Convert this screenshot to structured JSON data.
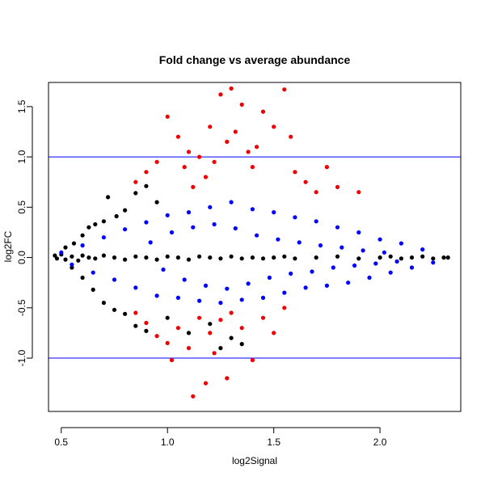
{
  "chart_data": {
    "type": "scatter",
    "title": "Fold change vs average abundance",
    "xlabel": "log2Signal",
    "ylabel": "log2FC",
    "xlim": [
      0.44,
      2.38
    ],
    "ylim": [
      -1.53,
      1.74
    ],
    "x_ticks": [
      {
        "value": 0.5,
        "label": "0.5"
      },
      {
        "value": 1.0,
        "label": "1.0"
      },
      {
        "value": 1.5,
        "label": "1.5"
      },
      {
        "value": 2.0,
        "label": "2.0"
      }
    ],
    "y_ticks": [
      {
        "value": -1.0,
        "label": "-1.0"
      },
      {
        "value": -0.5,
        "label": "-0.5"
      },
      {
        "value": 0.0,
        "label": "0.0"
      },
      {
        "value": 0.5,
        "label": "0.5"
      },
      {
        "value": 1.0,
        "label": "1.0"
      },
      {
        "value": 1.5,
        "label": "1.5"
      }
    ],
    "reference_lines": [
      {
        "axis": "y",
        "value": 1.0,
        "color": "#0000ff"
      },
      {
        "axis": "y",
        "value": -1.0,
        "color": "#0000ff"
      }
    ],
    "grid": false,
    "legend": "none",
    "series": [
      {
        "color": "#000000",
        "points": [
          [
            0.47,
            0.02
          ],
          [
            0.48,
            -0.01
          ],
          [
            0.5,
            0.03
          ],
          [
            0.52,
            -0.02
          ],
          [
            0.55,
            0.01
          ],
          [
            0.58,
            -0.03
          ],
          [
            0.6,
            0.02
          ],
          [
            0.63,
            0.0
          ],
          [
            0.66,
            -0.01
          ],
          [
            0.7,
            0.02
          ],
          [
            0.75,
            0.0
          ],
          [
            0.8,
            -0.02
          ],
          [
            0.85,
            0.01
          ],
          [
            0.9,
            0.0
          ],
          [
            0.95,
            -0.02
          ],
          [
            1.0,
            0.01
          ],
          [
            1.05,
            0.0
          ],
          [
            1.1,
            -0.02
          ],
          [
            1.15,
            0.01
          ],
          [
            1.2,
            0.0
          ],
          [
            1.25,
            -0.01
          ],
          [
            1.3,
            0.01
          ],
          [
            1.35,
            -0.01
          ],
          [
            1.4,
            0.0
          ],
          [
            1.45,
            -0.01
          ],
          [
            1.5,
            0.0
          ],
          [
            1.55,
            0.01
          ],
          [
            1.6,
            -0.01
          ],
          [
            1.7,
            0.0
          ],
          [
            1.8,
            0.01
          ],
          [
            1.9,
            -0.01
          ],
          [
            2.0,
            0.0
          ],
          [
            2.05,
            0.01
          ],
          [
            2.1,
            -0.01
          ],
          [
            2.15,
            0.0
          ],
          [
            2.2,
            0.01
          ],
          [
            2.25,
            -0.01
          ],
          [
            2.3,
            0.0
          ],
          [
            2.32,
            0.0
          ],
          [
            0.52,
            0.1
          ],
          [
            0.56,
            0.14
          ],
          [
            0.6,
            0.22
          ],
          [
            0.63,
            0.3
          ],
          [
            0.66,
            0.33
          ],
          [
            0.7,
            0.36
          ],
          [
            0.72,
            0.6
          ],
          [
            0.76,
            0.41
          ],
          [
            0.8,
            0.47
          ],
          [
            0.85,
            0.64
          ],
          [
            0.9,
            0.71
          ],
          [
            0.95,
            0.55
          ],
          [
            0.55,
            -0.1
          ],
          [
            0.6,
            -0.2
          ],
          [
            0.65,
            -0.32
          ],
          [
            0.7,
            -0.45
          ],
          [
            0.75,
            -0.52
          ],
          [
            0.8,
            -0.56
          ],
          [
            0.85,
            -0.68
          ],
          [
            0.9,
            -0.73
          ],
          [
            1.3,
            -0.8
          ],
          [
            1.35,
            -0.86
          ],
          [
            1.2,
            -0.66
          ],
          [
            1.0,
            -0.6
          ],
          [
            1.1,
            -0.75
          ],
          [
            1.25,
            -0.9
          ]
        ]
      },
      {
        "color": "#0000ff",
        "points": [
          [
            0.5,
            0.05
          ],
          [
            0.55,
            -0.07
          ],
          [
            0.6,
            0.12
          ],
          [
            0.65,
            -0.15
          ],
          [
            0.7,
            0.2
          ],
          [
            0.75,
            -0.22
          ],
          [
            0.8,
            0.28
          ],
          [
            0.85,
            -0.3
          ],
          [
            0.9,
            0.35
          ],
          [
            0.95,
            -0.38
          ],
          [
            1.0,
            0.42
          ],
          [
            1.05,
            -0.4
          ],
          [
            1.1,
            0.45
          ],
          [
            1.15,
            -0.43
          ],
          [
            1.2,
            0.5
          ],
          [
            1.25,
            -0.45
          ],
          [
            1.3,
            0.55
          ],
          [
            1.35,
            -0.42
          ],
          [
            1.4,
            0.48
          ],
          [
            1.45,
            -0.4
          ],
          [
            1.5,
            0.45
          ],
          [
            1.55,
            -0.35
          ],
          [
            1.6,
            0.4
          ],
          [
            1.65,
            -0.3
          ],
          [
            1.7,
            0.36
          ],
          [
            1.75,
            -0.28
          ],
          [
            1.8,
            0.3
          ],
          [
            1.85,
            -0.25
          ],
          [
            1.9,
            0.25
          ],
          [
            1.95,
            -0.2
          ],
          [
            2.0,
            0.18
          ],
          [
            2.05,
            -0.15
          ],
          [
            2.1,
            0.14
          ],
          [
            2.15,
            -0.1
          ],
          [
            2.2,
            0.08
          ],
          [
            2.25,
            -0.05
          ],
          [
            0.92,
            0.15
          ],
          [
            0.98,
            -0.12
          ],
          [
            1.02,
            0.25
          ],
          [
            1.08,
            -0.22
          ],
          [
            1.12,
            0.3
          ],
          [
            1.18,
            -0.28
          ],
          [
            1.22,
            0.33
          ],
          [
            1.28,
            -0.31
          ],
          [
            1.32,
            0.29
          ],
          [
            1.38,
            -0.26
          ],
          [
            1.42,
            0.22
          ],
          [
            1.48,
            -0.2
          ],
          [
            1.52,
            0.18
          ],
          [
            1.58,
            -0.16
          ],
          [
            1.62,
            0.15
          ],
          [
            1.68,
            -0.14
          ],
          [
            1.72,
            0.12
          ],
          [
            1.78,
            -0.1
          ],
          [
            1.82,
            0.1
          ],
          [
            1.88,
            -0.08
          ],
          [
            1.92,
            0.07
          ],
          [
            1.98,
            -0.06
          ],
          [
            2.02,
            0.05
          ],
          [
            2.08,
            -0.04
          ]
        ]
      },
      {
        "color": "#ee0000",
        "points": [
          [
            0.85,
            0.75
          ],
          [
            0.9,
            0.85
          ],
          [
            0.95,
            0.95
          ],
          [
            1.0,
            1.4
          ],
          [
            1.05,
            1.2
          ],
          [
            1.08,
            0.9
          ],
          [
            1.1,
            1.05
          ],
          [
            1.12,
            0.7
          ],
          [
            1.15,
            1.0
          ],
          [
            1.18,
            0.8
          ],
          [
            1.2,
            1.3
          ],
          [
            1.22,
            0.95
          ],
          [
            1.25,
            1.62
          ],
          [
            1.28,
            1.15
          ],
          [
            1.3,
            1.68
          ],
          [
            1.32,
            1.25
          ],
          [
            1.35,
            1.52
          ],
          [
            1.38,
            1.05
          ],
          [
            1.4,
            0.9
          ],
          [
            1.42,
            1.1
          ],
          [
            1.45,
            1.45
          ],
          [
            1.5,
            1.3
          ],
          [
            1.55,
            1.67
          ],
          [
            1.58,
            1.2
          ],
          [
            1.6,
            0.85
          ],
          [
            1.65,
            0.75
          ],
          [
            1.7,
            0.65
          ],
          [
            1.75,
            0.9
          ],
          [
            1.8,
            0.7
          ],
          [
            1.9,
            0.65
          ],
          [
            0.85,
            -0.55
          ],
          [
            0.9,
            -0.65
          ],
          [
            0.95,
            -0.78
          ],
          [
            1.0,
            -0.85
          ],
          [
            1.02,
            -1.02
          ],
          [
            1.05,
            -0.7
          ],
          [
            1.1,
            -0.9
          ],
          [
            1.12,
            -1.38
          ],
          [
            1.15,
            -0.6
          ],
          [
            1.18,
            -1.25
          ],
          [
            1.2,
            -0.75
          ],
          [
            1.22,
            -0.95
          ],
          [
            1.25,
            -0.62
          ],
          [
            1.28,
            -1.2
          ],
          [
            1.3,
            -0.55
          ],
          [
            1.35,
            -0.7
          ],
          [
            1.4,
            -1.02
          ],
          [
            1.45,
            -0.6
          ],
          [
            1.5,
            -0.75
          ],
          [
            1.55,
            -0.5
          ]
        ]
      }
    ]
  }
}
